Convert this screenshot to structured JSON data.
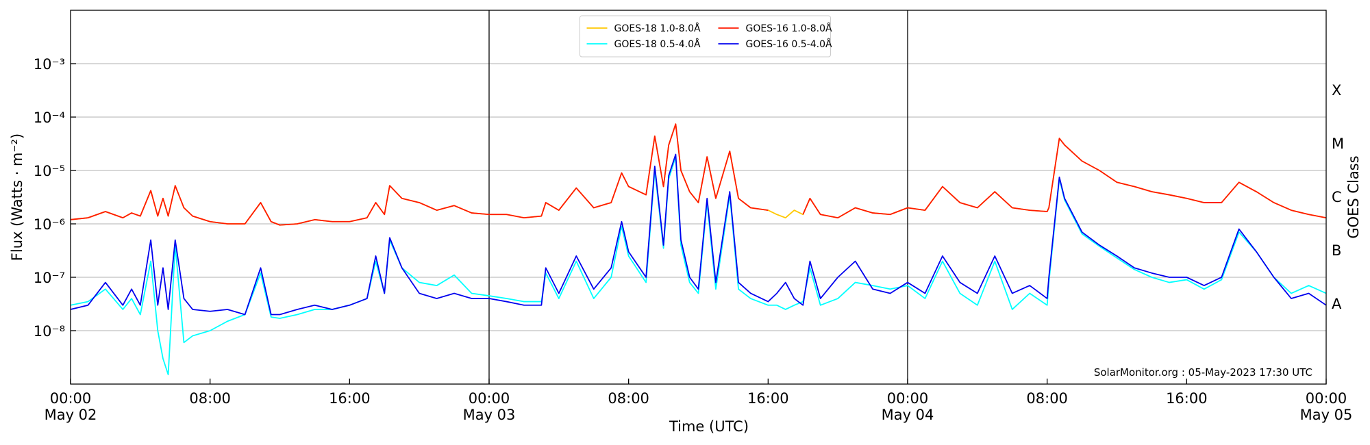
{
  "chart_data": {
    "type": "line",
    "ylabel": "Flux (Watts · m⁻²)",
    "xlabel": "Time (UTC)",
    "y2label": "GOES Class",
    "annotation": "SolarMonitor.org : 05-May-2023 17:30 UTC",
    "log_scale_y": true,
    "grid": true,
    "legend": "top-center",
    "ylim": [
      1e-09,
      0.01
    ],
    "yticks": [
      {
        "value": 1e-08,
        "label": "10⁻⁸"
      },
      {
        "value": 1e-07,
        "label": "10⁻⁷"
      },
      {
        "value": 1e-06,
        "label": "10⁻⁶"
      },
      {
        "value": 1e-05,
        "label": "10⁻⁵"
      },
      {
        "value": 0.0001,
        "label": "10⁻⁴"
      },
      {
        "value": 0.001,
        "label": "10⁻³"
      }
    ],
    "y2lim": [
      1e-09,
      0.01
    ],
    "y2ticks": [
      {
        "value": 3.16e-08,
        "label": "A"
      },
      {
        "value": 3.16e-07,
        "label": "B"
      },
      {
        "value": 3.16e-06,
        "label": "C"
      },
      {
        "value": 3.16e-05,
        "label": "M"
      },
      {
        "value": 0.000316,
        "label": "X"
      }
    ],
    "xlim": [
      0,
      72
    ],
    "xticks": [
      {
        "value": 0,
        "label": "00:00\nMay 02"
      },
      {
        "value": 8,
        "label": "08:00"
      },
      {
        "value": 16,
        "label": "16:00"
      },
      {
        "value": 24,
        "label": "00:00\nMay 03"
      },
      {
        "value": 32,
        "label": "08:00"
      },
      {
        "value": 40,
        "label": "16:00"
      },
      {
        "value": 48,
        "label": "00:00\nMay 04"
      },
      {
        "value": 56,
        "label": "08:00"
      },
      {
        "value": 64,
        "label": "16:00"
      },
      {
        "value": 72,
        "label": "00:00\nMay 05"
      }
    ],
    "day_lines": [
      24,
      48
    ],
    "x": [
      0,
      1,
      2,
      3,
      3.5,
      4,
      4.6,
      5,
      5.3,
      5.6,
      6,
      6.5,
      7,
      8,
      9,
      10,
      10.9,
      11.5,
      12,
      13,
      14,
      15,
      16,
      17,
      17.5,
      18,
      18.3,
      19,
      20,
      21,
      22,
      23,
      24,
      25,
      26,
      27,
      27.25,
      28,
      29,
      30,
      31,
      31.6,
      32,
      33,
      33.5,
      34,
      34.3,
      34.7,
      35,
      35.5,
      36,
      36.5,
      37,
      37.8,
      38.3,
      39,
      40,
      40.5,
      41,
      41.5,
      42,
      42.4,
      43,
      44,
      45,
      46,
      47,
      48,
      49,
      50,
      51,
      52,
      53,
      54,
      55,
      56,
      56.1,
      56.7,
      57,
      58,
      59,
      60,
      61,
      62,
      63,
      64,
      65,
      66,
      67,
      68,
      69,
      70,
      71,
      72
    ],
    "series": [
      {
        "name": "GOES-18 1.0-8.0Å",
        "color": "#ffc800",
        "values": [
          1.2e-06,
          1.3e-06,
          1.7e-06,
          1.3e-06,
          1.6e-06,
          1.4e-06,
          4.2e-06,
          1.4e-06,
          3e-06,
          1.4e-06,
          5.2e-06,
          2e-06,
          1.4e-06,
          1.1e-06,
          1e-06,
          1e-06,
          2.5e-06,
          1.1e-06,
          9.5e-07,
          1e-06,
          1.2e-06,
          1.1e-06,
          1.1e-06,
          1.3e-06,
          2.5e-06,
          1.5e-06,
          5.2e-06,
          3e-06,
          2.5e-06,
          1.8e-06,
          2.2e-06,
          1.6e-06,
          1.5e-06,
          1.5e-06,
          1.3e-06,
          1.4e-06,
          2.5e-06,
          1.8e-06,
          4.7e-06,
          2e-06,
          2.5e-06,
          9e-06,
          5e-06,
          3.5e-06,
          4.4e-05,
          5e-06,
          3e-05,
          7.4e-05,
          1e-05,
          4e-06,
          2.5e-06,
          1.8e-05,
          3e-06,
          2.3e-05,
          3e-06,
          2e-06,
          1.8e-06,
          1.5e-06,
          1.3e-06,
          1.8e-06,
          1.5e-06,
          3e-06,
          1.5e-06,
          1.3e-06,
          2e-06,
          1.6e-06,
          1.5e-06,
          2e-06,
          1.8e-06,
          5e-06,
          2.5e-06,
          2e-06,
          4e-06,
          2e-06,
          1.8e-06,
          1.7e-06,
          2e-06,
          4e-05,
          3e-05,
          1.5e-05,
          1e-05,
          6e-06,
          5e-06,
          4e-06,
          3.5e-06,
          3e-06,
          2.5e-06,
          2.5e-06,
          6e-06,
          4e-06,
          2.5e-06,
          1.8e-06,
          1.5e-06,
          1.3e-06
        ]
      },
      {
        "name": "GOES-18 0.5-4.0Å",
        "color": "#00ffff",
        "values": [
          3e-08,
          3.5e-08,
          6e-08,
          2.5e-08,
          4e-08,
          2e-08,
          2e-07,
          1e-08,
          3e-09,
          1.5e-09,
          4e-07,
          6e-09,
          8e-09,
          1e-08,
          1.5e-08,
          2e-08,
          1.2e-07,
          1.8e-08,
          1.7e-08,
          2e-08,
          2.5e-08,
          2.5e-08,
          3e-08,
          4e-08,
          2e-07,
          5e-08,
          5e-07,
          1.5e-07,
          8e-08,
          7e-08,
          1.1e-07,
          5e-08,
          4.5e-08,
          4e-08,
          3.5e-08,
          3.5e-08,
          1.2e-07,
          4e-08,
          2e-07,
          4e-08,
          1e-07,
          9e-07,
          2.5e-07,
          8e-08,
          1e-05,
          3.5e-07,
          7e-06,
          1.8e-05,
          4e-07,
          8e-08,
          5e-08,
          2.5e-06,
          6e-08,
          3.5e-06,
          6e-08,
          4e-08,
          3e-08,
          3e-08,
          2.5e-08,
          3e-08,
          3.5e-08,
          1.5e-07,
          3e-08,
          4e-08,
          8e-08,
          7e-08,
          6e-08,
          7e-08,
          4e-08,
          2e-07,
          5e-08,
          3e-08,
          2e-07,
          2.5e-08,
          5e-08,
          3e-08,
          8e-08,
          7e-06,
          2.8e-06,
          6.5e-07,
          3.8e-07,
          2.3e-07,
          1.4e-07,
          1e-07,
          8e-08,
          9e-08,
          6e-08,
          9e-08,
          7e-07,
          3e-07,
          1e-07,
          5e-08,
          7e-08,
          5e-08
        ]
      },
      {
        "name": "GOES-16 1.0-8.0Å",
        "color": "#ff1a00",
        "values": [
          1.2e-06,
          1.3e-06,
          1.7e-06,
          1.3e-06,
          1.6e-06,
          1.4e-06,
          4.2e-06,
          1.4e-06,
          3e-06,
          1.4e-06,
          5.2e-06,
          2e-06,
          1.4e-06,
          1.1e-06,
          1e-06,
          1e-06,
          2.5e-06,
          1.1e-06,
          9.5e-07,
          1e-06,
          1.2e-06,
          1.1e-06,
          1.1e-06,
          1.3e-06,
          2.5e-06,
          1.5e-06,
          5.2e-06,
          3e-06,
          2.5e-06,
          1.8e-06,
          2.2e-06,
          1.6e-06,
          1.5e-06,
          1.5e-06,
          1.3e-06,
          1.4e-06,
          2.5e-06,
          1.8e-06,
          4.7e-06,
          2e-06,
          2.5e-06,
          9e-06,
          5e-06,
          3.5e-06,
          4.4e-05,
          5e-06,
          3e-05,
          7.4e-05,
          1e-05,
          4e-06,
          2.5e-06,
          1.8e-05,
          3e-06,
          2.3e-05,
          3e-06,
          2e-06,
          1.8e-06,
          null,
          null,
          null,
          1.5e-06,
          3e-06,
          1.5e-06,
          1.3e-06,
          2e-06,
          1.6e-06,
          1.5e-06,
          2e-06,
          1.8e-06,
          5e-06,
          2.5e-06,
          2e-06,
          4e-06,
          2e-06,
          1.8e-06,
          1.7e-06,
          2e-06,
          4e-05,
          3e-05,
          1.5e-05,
          1e-05,
          6e-06,
          5e-06,
          4e-06,
          3.5e-06,
          3e-06,
          2.5e-06,
          2.5e-06,
          6e-06,
          4e-06,
          2.5e-06,
          1.8e-06,
          1.5e-06,
          1.3e-06
        ]
      },
      {
        "name": "GOES-16 0.5-4.0Å",
        "color": "#0000ee",
        "values": [
          2.5e-08,
          3e-08,
          8e-08,
          3e-08,
          6e-08,
          3e-08,
          5e-07,
          3e-08,
          1.5e-07,
          2.5e-08,
          5e-07,
          4e-08,
          2.5e-08,
          2.3e-08,
          2.5e-08,
          2e-08,
          1.5e-07,
          2e-08,
          2e-08,
          2.5e-08,
          3e-08,
          2.5e-08,
          3e-08,
          4e-08,
          2.5e-07,
          5e-08,
          5.5e-07,
          1.5e-07,
          5e-08,
          4e-08,
          5e-08,
          4e-08,
          4e-08,
          3.5e-08,
          3e-08,
          3e-08,
          1.5e-07,
          5e-08,
          2.5e-07,
          6e-08,
          1.5e-07,
          1.1e-06,
          3e-07,
          1e-07,
          1.2e-05,
          4e-07,
          8e-06,
          2e-05,
          5e-07,
          1e-07,
          6e-08,
          3e-06,
          8e-08,
          4e-06,
          8e-08,
          5e-08,
          3.5e-08,
          5e-08,
          8e-08,
          4e-08,
          3e-08,
          2e-07,
          4e-08,
          1e-07,
          2e-07,
          6e-08,
          5e-08,
          8e-08,
          5e-08,
          2.5e-07,
          8e-08,
          5e-08,
          2.5e-07,
          5e-08,
          7e-08,
          4e-08,
          1e-07,
          7.5e-06,
          3e-06,
          7e-07,
          4e-07,
          2.5e-07,
          1.5e-07,
          1.2e-07,
          1e-07,
          1e-07,
          7e-08,
          1e-07,
          8e-07,
          3e-07,
          1e-07,
          4e-08,
          5e-08,
          3e-08
        ]
      }
    ]
  }
}
